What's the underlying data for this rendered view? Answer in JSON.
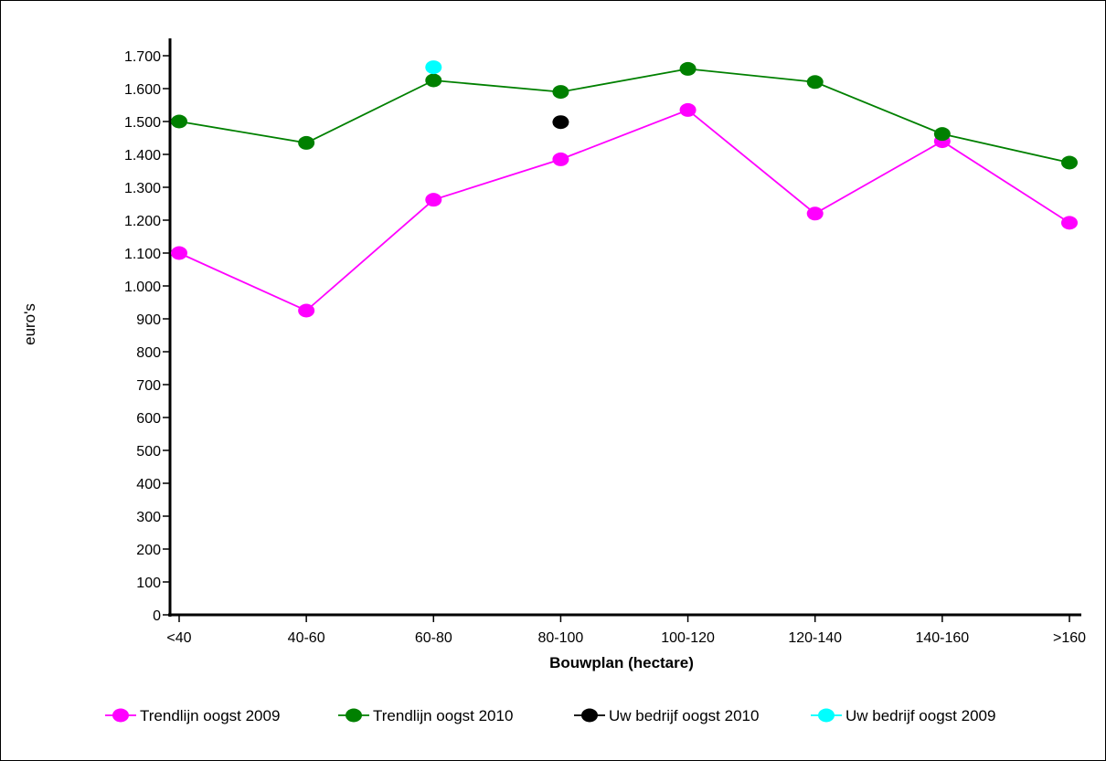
{
  "chart_data": {
    "type": "line",
    "title": "",
    "xlabel": "Bouwplan (hectare)",
    "ylabel": "euro's",
    "categories": [
      "<40",
      "40-60",
      "60-80",
      "80-100",
      "100-120",
      "120-140",
      "140-160",
      ">160"
    ],
    "ylim": [
      0,
      1700
    ],
    "yticks": [
      0,
      100,
      200,
      300,
      400,
      500,
      600,
      700,
      800,
      900,
      1000,
      1100,
      1200,
      1300,
      1400,
      1500,
      1600,
      1700
    ],
    "ytick_labels": [
      "0",
      "100",
      "200",
      "300",
      "400",
      "500",
      "600",
      "700",
      "800",
      "900",
      "1.000",
      "1.100",
      "1.200",
      "1.300",
      "1.400",
      "1.500",
      "1.600",
      "1.700"
    ],
    "grid": false,
    "legend_position": "bottom",
    "series": [
      {
        "name": "Trendlijn oogst 2009",
        "color": "#ff00ff",
        "values": [
          1100,
          925,
          1262,
          1385,
          1535,
          1220,
          1440,
          1192
        ],
        "line": true
      },
      {
        "name": "Trendlijn oogst 2010",
        "color": "#008000",
        "values": [
          1500,
          1435,
          1625,
          1590,
          1660,
          1620,
          1462,
          1375
        ],
        "line": true
      },
      {
        "name": "Uw bedrijf oogst 2010",
        "color": "#000000",
        "values": [
          null,
          null,
          null,
          1498,
          null,
          null,
          null,
          null
        ],
        "line": false
      },
      {
        "name": "Uw bedrijf oogst 2009",
        "color": "#00ffff",
        "values": [
          null,
          null,
          1665,
          null,
          null,
          null,
          null,
          null
        ],
        "line": false
      }
    ]
  }
}
